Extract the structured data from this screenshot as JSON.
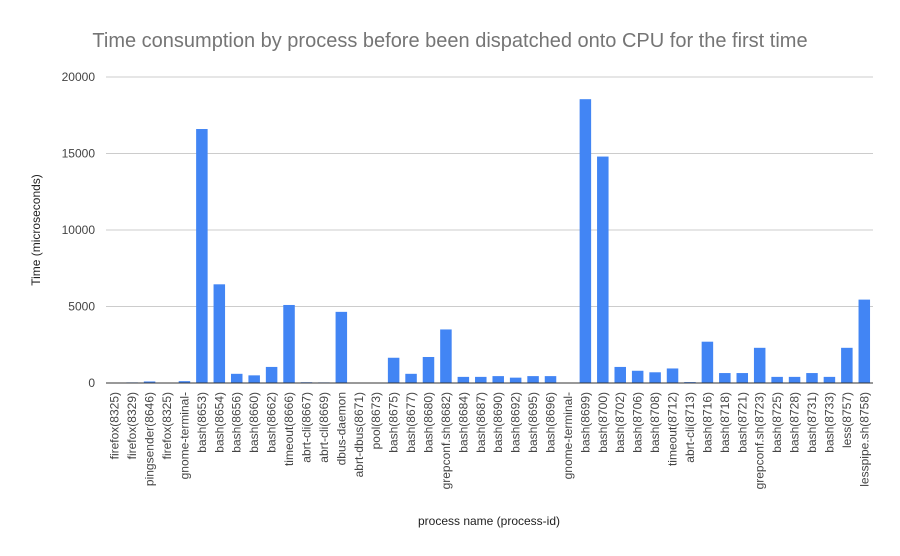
{
  "chart_data": {
    "type": "bar",
    "title": "Time consumption by process before been dispatched onto CPU for the first time",
    "xlabel": "process name (process-id)",
    "ylabel": "Time (microseconds)",
    "ylim": [
      0,
      20000
    ],
    "yticks": [
      0,
      5000,
      10000,
      15000,
      20000
    ],
    "grid": true,
    "legend": "none",
    "bar_color": "#4285F4",
    "categories": [
      "firefox(8325)",
      "firefox(8329)",
      "pingsender(8646)",
      "firefox(8325)",
      "gnome-terminal-",
      "bash(8653)",
      "bash(8654)",
      "bash(8656)",
      "bash(8660)",
      "bash(8662)",
      "timeout(8666)",
      "abrt-cli(8667)",
      "abrt-cli(8669)",
      "dbus-daemon",
      "abrt-dbus(8671)",
      "pool(8673)",
      "bash(8675)",
      "bash(8677)",
      "bash(8680)",
      "grepconf.sh(8682)",
      "bash(8684)",
      "bash(8687)",
      "bash(8690)",
      "bash(8692)",
      "bash(8695)",
      "bash(8696)",
      "gnome-terminal-",
      "bash(8699)",
      "bash(8700)",
      "bash(8702)",
      "bash(8706)",
      "bash(8708)",
      "timeout(8712)",
      "abrt-cli(8713)",
      "bash(8716)",
      "bash(8718)",
      "bash(8721)",
      "grepconf.sh(8723)",
      "bash(8725)",
      "bash(8728)",
      "bash(8731)",
      "bash(8733)",
      "less(8757)",
      "lesspipe.sh(8758)"
    ],
    "values": [
      30,
      40,
      100,
      30,
      120,
      16600,
      6450,
      600,
      500,
      1050,
      5100,
      50,
      40,
      4650,
      20,
      30,
      1650,
      600,
      1700,
      3500,
      400,
      400,
      450,
      350,
      450,
      450,
      20,
      18550,
      14800,
      1050,
      800,
      700,
      950,
      60,
      2700,
      650,
      650,
      2300,
      400,
      400,
      650,
      400,
      2300,
      5450
    ]
  }
}
